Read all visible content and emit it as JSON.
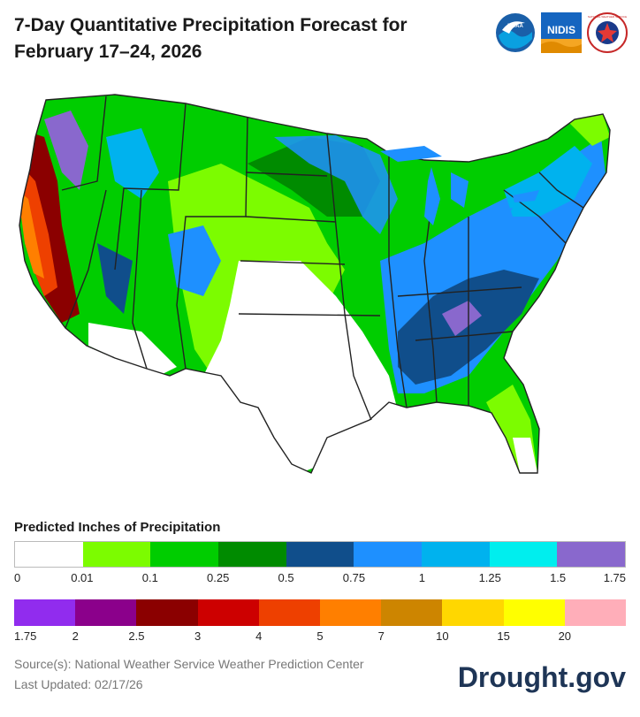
{
  "title": "7-Day Quantitative Precipitation Forecast for February 17–24, 2026",
  "logos": [
    {
      "name": "noaa-logo",
      "text": "NOAA"
    },
    {
      "name": "nidis-logo",
      "text": "NIDIS"
    },
    {
      "name": "nws-logo",
      "text": "NATIONAL WEATHER SERVICE"
    }
  ],
  "legend": {
    "title": "Predicted Inches of Precipitation",
    "row1": {
      "colors": [
        "#ffffff",
        "#7cfc00",
        "#00cd00",
        "#008b00",
        "#104e8b",
        "#1e90ff",
        "#00b2ee",
        "#00eeee",
        "#8968cd"
      ],
      "labels": [
        "0",
        "0.01",
        "0.1",
        "0.25",
        "0.5",
        "0.75",
        "1",
        "1.25",
        "1.5",
        "1.75"
      ]
    },
    "row2": {
      "colors": [
        "#912cee",
        "#8b008b",
        "#8b0000",
        "#cd0000",
        "#ee4000",
        "#ff7f00",
        "#cd8500",
        "#ffd700",
        "#ffff00",
        "#ffaeb9"
      ],
      "labels": [
        "1.75",
        "2",
        "2.5",
        "3",
        "4",
        "5",
        "7",
        "10",
        "15",
        "20"
      ]
    }
  },
  "source_line": "Source(s): National Weather Service Weather Prediction Center",
  "updated_line": "Last Updated: 02/17/26",
  "brand": "Drought.gov"
}
